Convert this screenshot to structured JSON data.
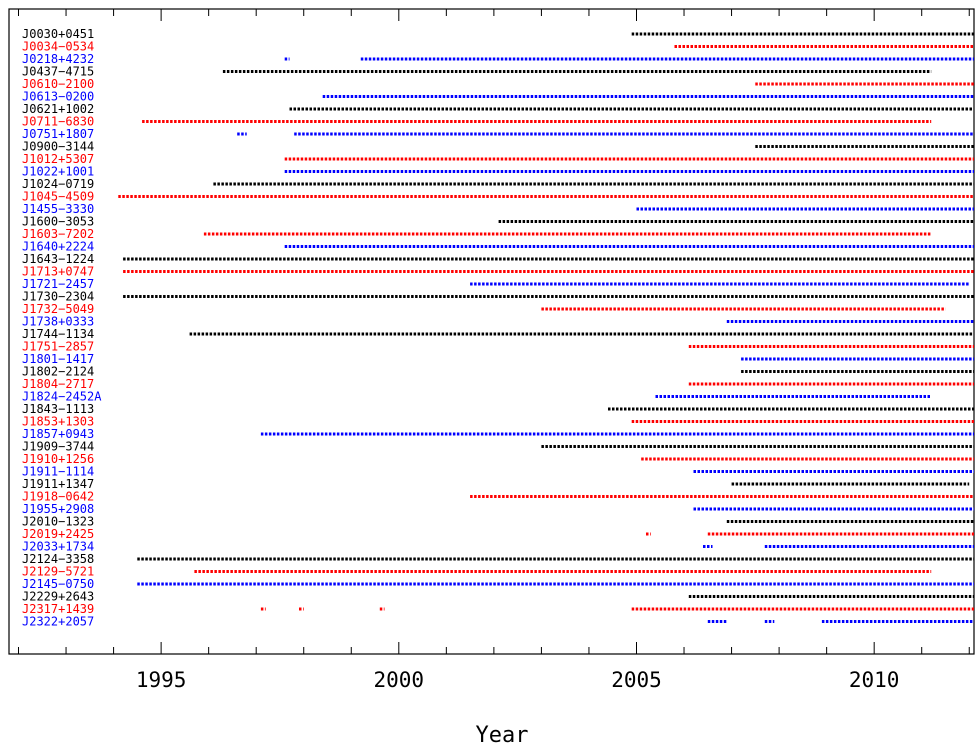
{
  "chart_data": {
    "type": "scatter",
    "title": "",
    "xlabel": "Year",
    "ylabel": "",
    "xlim": [
      1991.8,
      2012.1
    ],
    "x_ticks": [
      1995,
      2000,
      2005,
      2010
    ],
    "x_tick_labels": [
      "1995",
      "2000",
      "2005",
      "2010"
    ],
    "grid": false,
    "legend": "none",
    "colors": {
      "black": "#000000",
      "red": "#ff0000",
      "blue": "#0000ff"
    },
    "series": [
      {
        "label": "J0030+0451",
        "color": "black",
        "segments": [
          [
            2004.9,
            2012.1
          ]
        ]
      },
      {
        "label": "J0034−0534",
        "color": "red",
        "segments": [
          [
            2005.8,
            2012.1
          ]
        ]
      },
      {
        "label": "J0218+4232",
        "color": "blue",
        "segments": [
          [
            1997.6,
            1997.7
          ],
          [
            1999.2,
            2012.1
          ]
        ]
      },
      {
        "label": "J0437−4715",
        "color": "black",
        "segments": [
          [
            1996.3,
            2011.2
          ]
        ]
      },
      {
        "label": "J0610−2100",
        "color": "red",
        "segments": [
          [
            2007.5,
            2012.1
          ]
        ]
      },
      {
        "label": "J0613−0200",
        "color": "blue",
        "segments": [
          [
            1998.4,
            2012.1
          ]
        ]
      },
      {
        "label": "J0621+1002",
        "color": "black",
        "segments": [
          [
            1997.7,
            2012.1
          ]
        ]
      },
      {
        "label": "J0711−6830",
        "color": "red",
        "segments": [
          [
            1994.6,
            2011.2
          ]
        ]
      },
      {
        "label": "J0751+1807",
        "color": "blue",
        "segments": [
          [
            1996.6,
            1996.8
          ],
          [
            1997.8,
            2012.1
          ]
        ]
      },
      {
        "label": "J0900−3144",
        "color": "black",
        "segments": [
          [
            2007.5,
            2012.1
          ]
        ]
      },
      {
        "label": "J1012+5307",
        "color": "red",
        "segments": [
          [
            1997.6,
            2012.1
          ]
        ]
      },
      {
        "label": "J1022+1001",
        "color": "blue",
        "segments": [
          [
            1997.6,
            2012.1
          ]
        ]
      },
      {
        "label": "J1024−0719",
        "color": "black",
        "segments": [
          [
            1996.1,
            2012.1
          ]
        ]
      },
      {
        "label": "J1045−4509",
        "color": "red",
        "segments": [
          [
            1994.1,
            2012.1
          ]
        ]
      },
      {
        "label": "J1455−3330",
        "color": "blue",
        "segments": [
          [
            2005.0,
            2012.1
          ]
        ]
      },
      {
        "label": "J1600−3053",
        "color": "black",
        "segments": [
          [
            2002.1,
            2012.1
          ]
        ]
      },
      {
        "label": "J1603−7202",
        "color": "red",
        "segments": [
          [
            1995.9,
            2011.2
          ]
        ]
      },
      {
        "label": "J1640+2224",
        "color": "blue",
        "segments": [
          [
            1997.6,
            2012.1
          ]
        ]
      },
      {
        "label": "J1643−1224",
        "color": "black",
        "segments": [
          [
            1994.2,
            2012.1
          ]
        ]
      },
      {
        "label": "J1713+0747",
        "color": "red",
        "segments": [
          [
            1994.2,
            2012.1
          ]
        ]
      },
      {
        "label": "J1721−2457",
        "color": "blue",
        "segments": [
          [
            2001.5,
            2012.0
          ]
        ]
      },
      {
        "label": "J1730−2304",
        "color": "black",
        "segments": [
          [
            1994.2,
            2012.1
          ]
        ]
      },
      {
        "label": "J1732−5049",
        "color": "red",
        "segments": [
          [
            2003.0,
            2011.5
          ]
        ]
      },
      {
        "label": "J1738+0333",
        "color": "blue",
        "segments": [
          [
            2006.9,
            2012.1
          ]
        ]
      },
      {
        "label": "J1744−1134",
        "color": "black",
        "segments": [
          [
            1995.6,
            2012.1
          ]
        ]
      },
      {
        "label": "J1751−2857",
        "color": "red",
        "segments": [
          [
            2006.1,
            2012.1
          ]
        ]
      },
      {
        "label": "J1801−1417",
        "color": "blue",
        "segments": [
          [
            2007.2,
            2012.1
          ]
        ]
      },
      {
        "label": "J1802−2124",
        "color": "black",
        "segments": [
          [
            2007.2,
            2012.1
          ]
        ]
      },
      {
        "label": "J1804−2717",
        "color": "red",
        "segments": [
          [
            2006.1,
            2012.1
          ]
        ]
      },
      {
        "label": "J1824−2452A",
        "color": "blue",
        "segments": [
          [
            2005.4,
            2011.2
          ]
        ]
      },
      {
        "label": "J1843−1113",
        "color": "black",
        "segments": [
          [
            2004.4,
            2012.1
          ]
        ]
      },
      {
        "label": "J1853+1303",
        "color": "red",
        "segments": [
          [
            2004.9,
            2012.1
          ]
        ]
      },
      {
        "label": "J1857+0943",
        "color": "blue",
        "segments": [
          [
            1997.1,
            2012.1
          ]
        ]
      },
      {
        "label": "J1909−3744",
        "color": "black",
        "segments": [
          [
            2003.0,
            2012.1
          ]
        ]
      },
      {
        "label": "J1910+1256",
        "color": "red",
        "segments": [
          [
            2005.1,
            2012.1
          ]
        ]
      },
      {
        "label": "J1911−1114",
        "color": "blue",
        "segments": [
          [
            2006.2,
            2012.1
          ]
        ]
      },
      {
        "label": "J1911+1347",
        "color": "black",
        "segments": [
          [
            2007.0,
            2012.0
          ]
        ]
      },
      {
        "label": "J1918−0642",
        "color": "red",
        "segments": [
          [
            2001.5,
            2012.1
          ]
        ]
      },
      {
        "label": "J1955+2908",
        "color": "blue",
        "segments": [
          [
            2006.2,
            2012.1
          ]
        ]
      },
      {
        "label": "J2010−1323",
        "color": "black",
        "segments": [
          [
            2006.9,
            2012.1
          ]
        ]
      },
      {
        "label": "J2019+2425",
        "color": "red",
        "segments": [
          [
            2005.2,
            2005.3
          ],
          [
            2006.5,
            2012.1
          ]
        ]
      },
      {
        "label": "J2033+1734",
        "color": "blue",
        "segments": [
          [
            2006.4,
            2006.6
          ],
          [
            2007.7,
            2012.1
          ]
        ]
      },
      {
        "label": "J2124−3358",
        "color": "black",
        "segments": [
          [
            1994.5,
            2012.1
          ]
        ]
      },
      {
        "label": "J2129−5721",
        "color": "red",
        "segments": [
          [
            1995.7,
            2011.2
          ]
        ]
      },
      {
        "label": "J2145−0750",
        "color": "blue",
        "segments": [
          [
            1994.5,
            2012.1
          ]
        ]
      },
      {
        "label": "J2229+2643",
        "color": "black",
        "segments": [
          [
            2006.1,
            2012.1
          ]
        ]
      },
      {
        "label": "J2317+1439",
        "color": "red",
        "segments": [
          [
            1997.1,
            1997.2
          ],
          [
            1997.9,
            1998.0
          ],
          [
            1999.6,
            1999.7
          ],
          [
            2004.9,
            2012.1
          ]
        ]
      },
      {
        "label": "J2322+2057",
        "color": "blue",
        "segments": [
          [
            2006.5,
            2006.9
          ],
          [
            2007.7,
            2007.9
          ],
          [
            2008.9,
            2012.1
          ]
        ]
      }
    ]
  }
}
